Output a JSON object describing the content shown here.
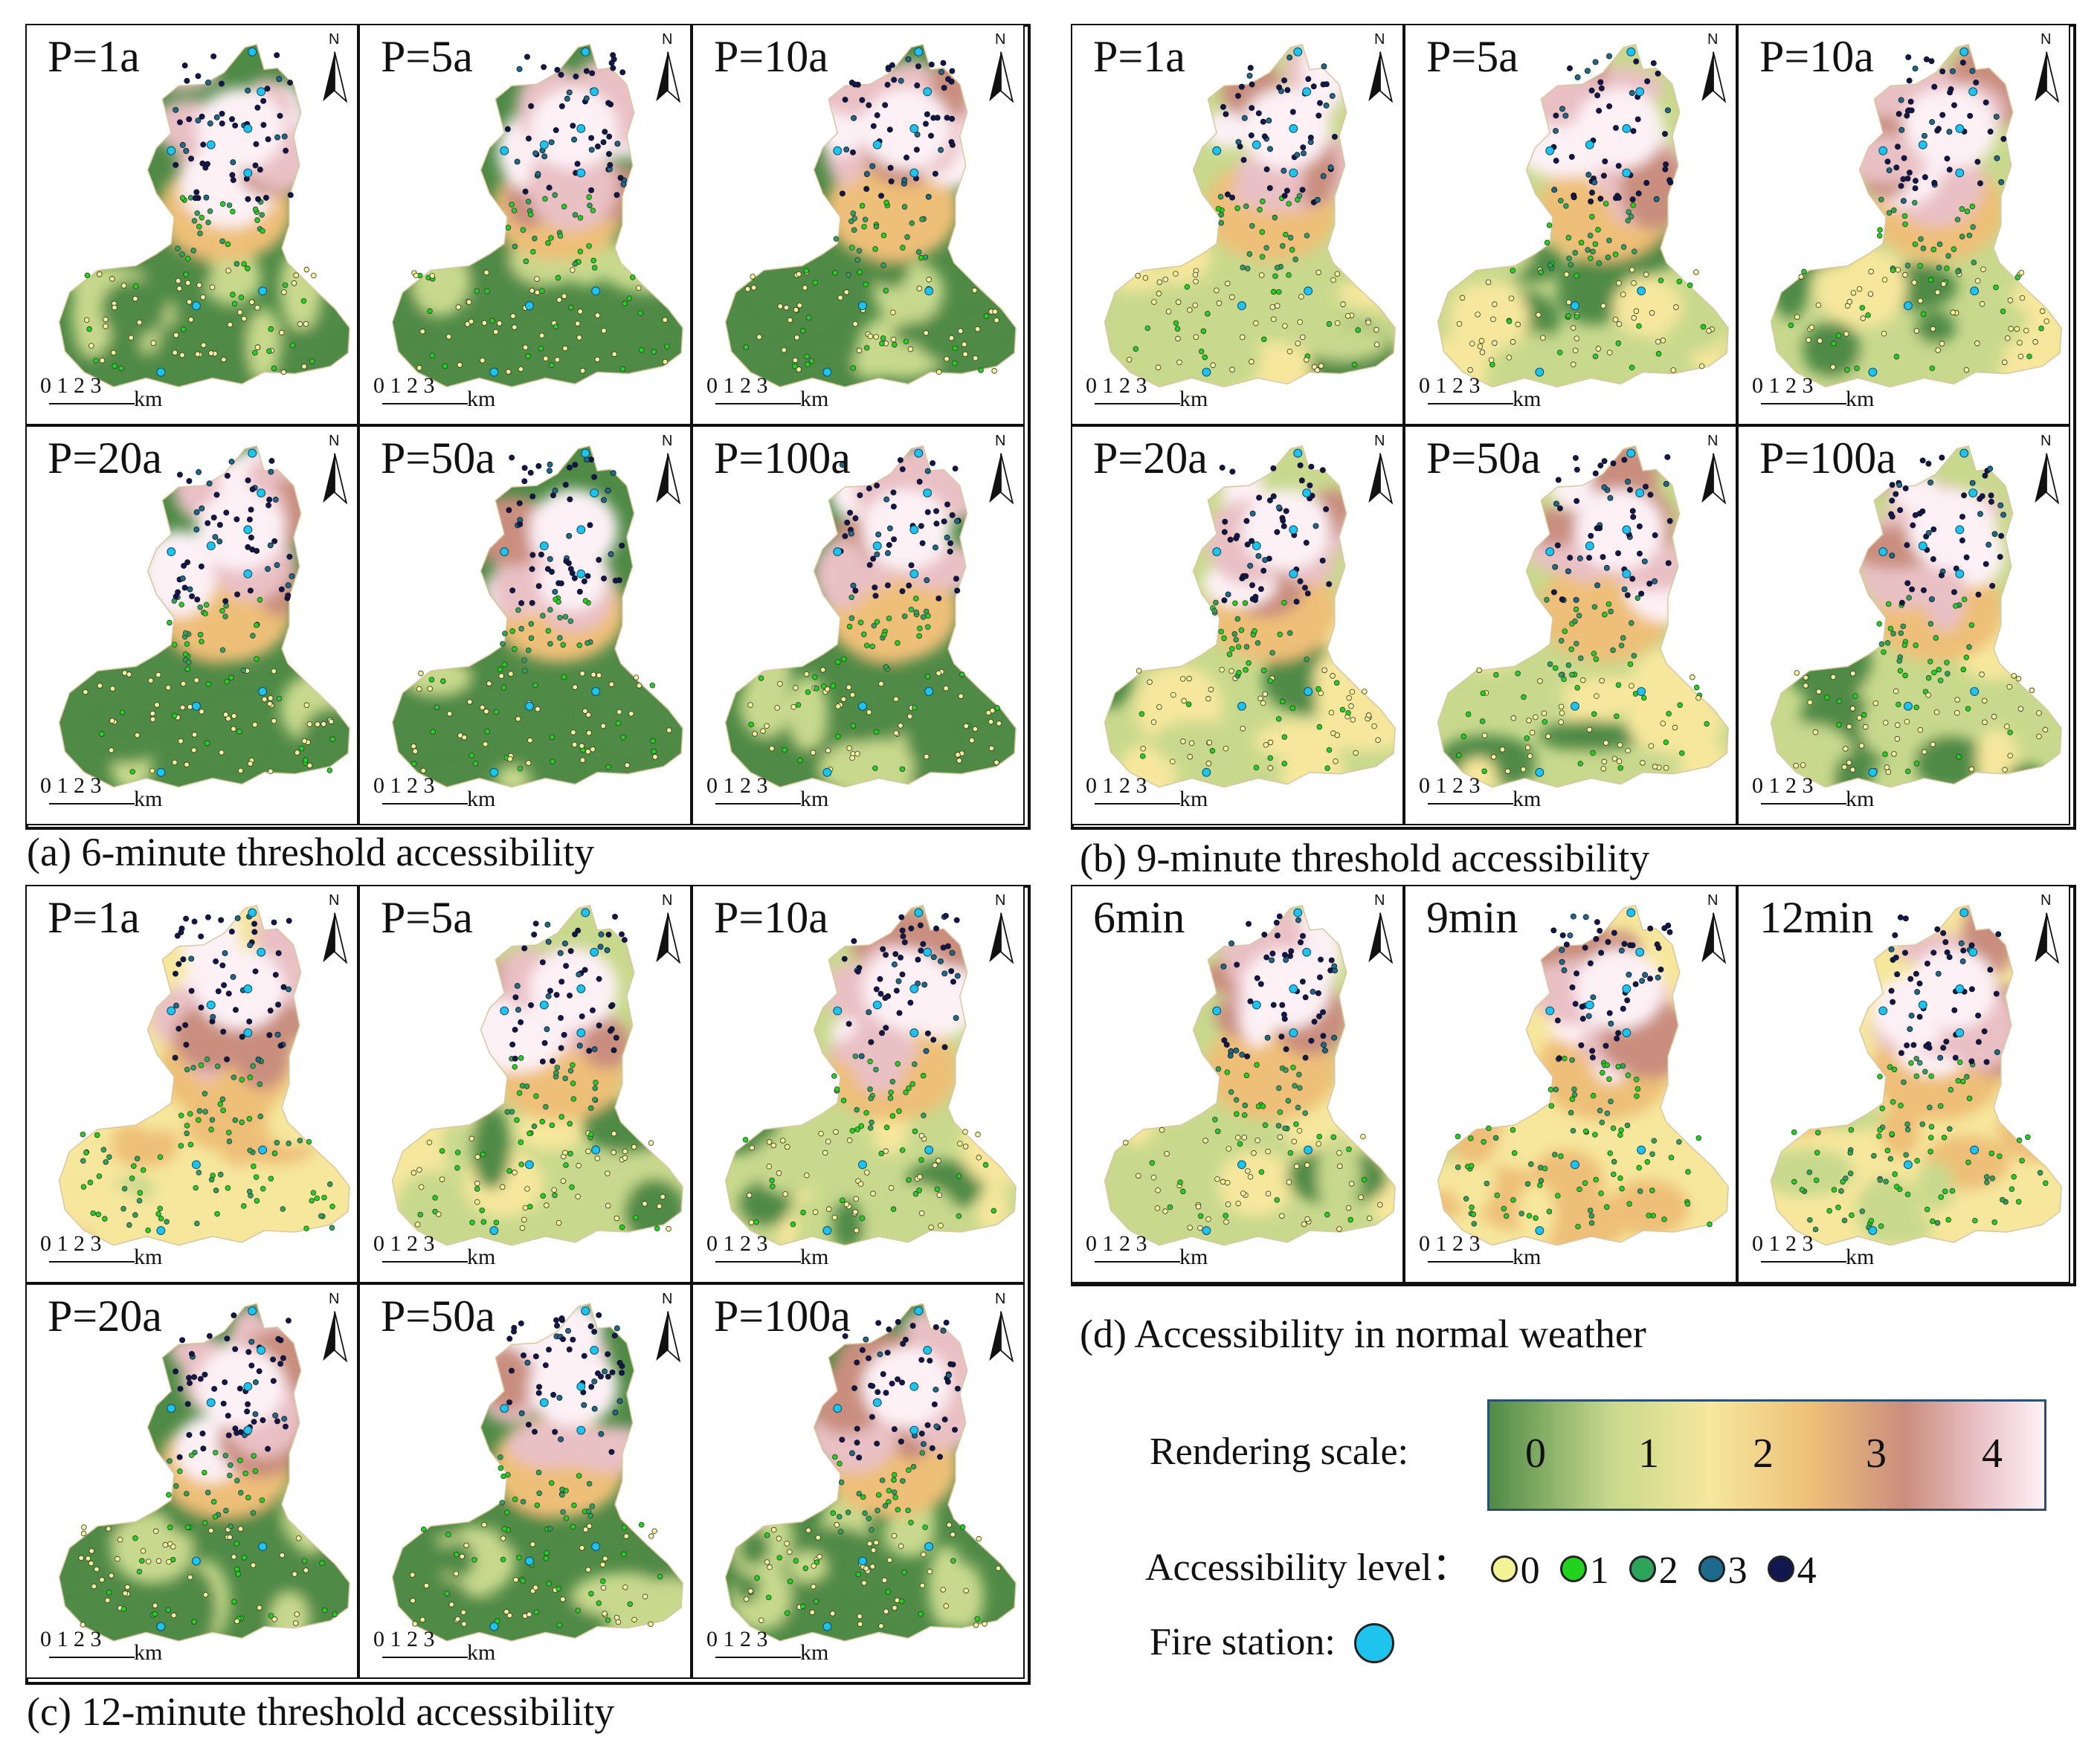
{
  "groups": [
    {
      "id": "a",
      "caption": "(a)  6-minute threshold accessibility",
      "panels": [
        "P=1a",
        "P=5a",
        "P=10a",
        "P=20a",
        "P=50a",
        "P=100a"
      ]
    },
    {
      "id": "b",
      "caption": "(b)  9-minute threshold accessibility",
      "panels": [
        "P=1a",
        "P=5a",
        "P=10a",
        "P=20a",
        "P=50a",
        "P=100a"
      ]
    },
    {
      "id": "c",
      "caption": "(c)  12-minute threshold accessibility",
      "panels": [
        "P=1a",
        "P=5a",
        "P=10a",
        "P=20a",
        "P=50a",
        "P=100a"
      ]
    },
    {
      "id": "d",
      "caption": "(d)  Accessibility in normal weather",
      "panels": [
        "6min",
        "9min",
        "12min"
      ]
    }
  ],
  "map_common": {
    "north_label": "N",
    "scale_numbers": "0 1 2 3",
    "scale_unit": "km"
  },
  "legend": {
    "rendering_scale_label": "Rendering scale:",
    "rendering_scale_ticks": [
      "0",
      "1",
      "2",
      "3",
      "4"
    ],
    "accessibility_level_label": "Accessibility level：",
    "accessibility_levels": [
      "0",
      "1",
      "2",
      "3",
      "4"
    ],
    "fire_station_label": "Fire station:"
  },
  "colors": {
    "scale": [
      "#4f8a46",
      "#c8d98d",
      "#f6e79c",
      "#eebf78",
      "#c98e7e",
      "#e9c0c4",
      "#fdf1f6"
    ],
    "level_0": "#f4f296",
    "level_1": "#22d31d",
    "level_2": "#2ea35a",
    "level_3": "#1d6a8c",
    "level_4": "#12184f",
    "fire_station": "#1ec3ee"
  }
}
